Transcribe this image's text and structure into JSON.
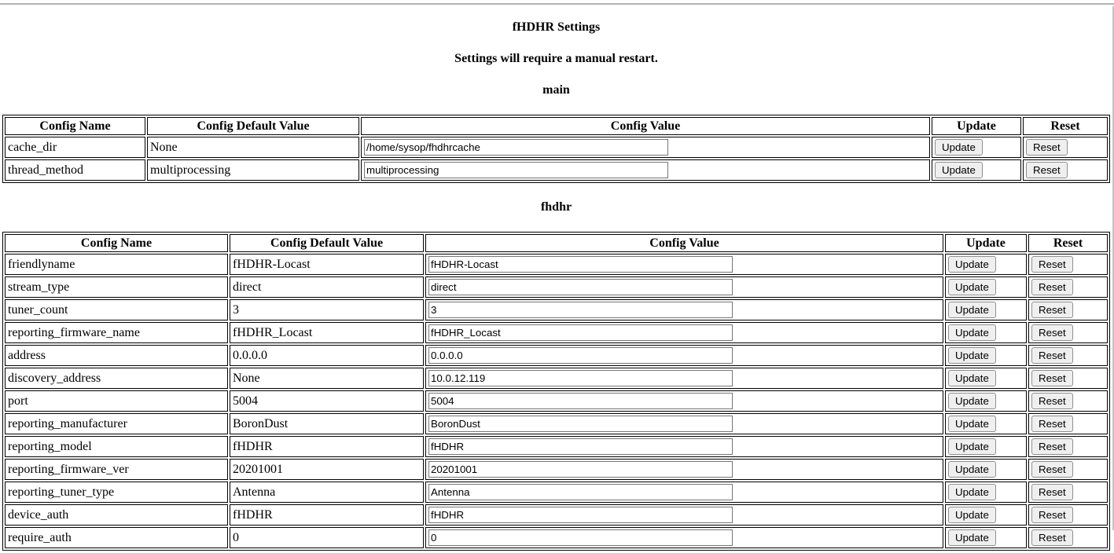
{
  "page": {
    "title": "fHDHR Settings",
    "subtitle": "Settings will require a manual restart."
  },
  "buttons": {
    "update": "Update",
    "reset": "Reset"
  },
  "tables": [
    {
      "section_title": "main",
      "headers": [
        "Config Name",
        "Config Default Value",
        "Config Value",
        "Update",
        "Reset"
      ],
      "rows": [
        {
          "name": "cache_dir",
          "default": "None",
          "value": "/home/sysop/fhdhrcache"
        },
        {
          "name": "thread_method",
          "default": "multiprocessing",
          "value": "multiprocessing"
        }
      ]
    },
    {
      "section_title": "fhdhr",
      "headers": [
        "Config Name",
        "Config Default Value",
        "Config Value",
        "Update",
        "Reset"
      ],
      "rows": [
        {
          "name": "friendlyname",
          "default": "fHDHR-Locast",
          "value": "fHDHR-Locast"
        },
        {
          "name": "stream_type",
          "default": "direct",
          "value": "direct"
        },
        {
          "name": "tuner_count",
          "default": "3",
          "value": "3"
        },
        {
          "name": "reporting_firmware_name",
          "default": "fHDHR_Locast",
          "value": "fHDHR_Locast"
        },
        {
          "name": "address",
          "default": "0.0.0.0",
          "value": "0.0.0.0"
        },
        {
          "name": "discovery_address",
          "default": "None",
          "value": "10.0.12.119"
        },
        {
          "name": "port",
          "default": "5004",
          "value": "5004"
        },
        {
          "name": "reporting_manufacturer",
          "default": "BoronDust",
          "value": "BoronDust"
        },
        {
          "name": "reporting_model",
          "default": "fHDHR",
          "value": "fHDHR"
        },
        {
          "name": "reporting_firmware_ver",
          "default": "20201001",
          "value": "20201001"
        },
        {
          "name": "reporting_tuner_type",
          "default": "Antenna",
          "value": "Antenna"
        },
        {
          "name": "device_auth",
          "default": "fHDHR",
          "value": "fHDHR"
        },
        {
          "name": "require_auth",
          "default": "0",
          "value": "0"
        }
      ]
    }
  ]
}
